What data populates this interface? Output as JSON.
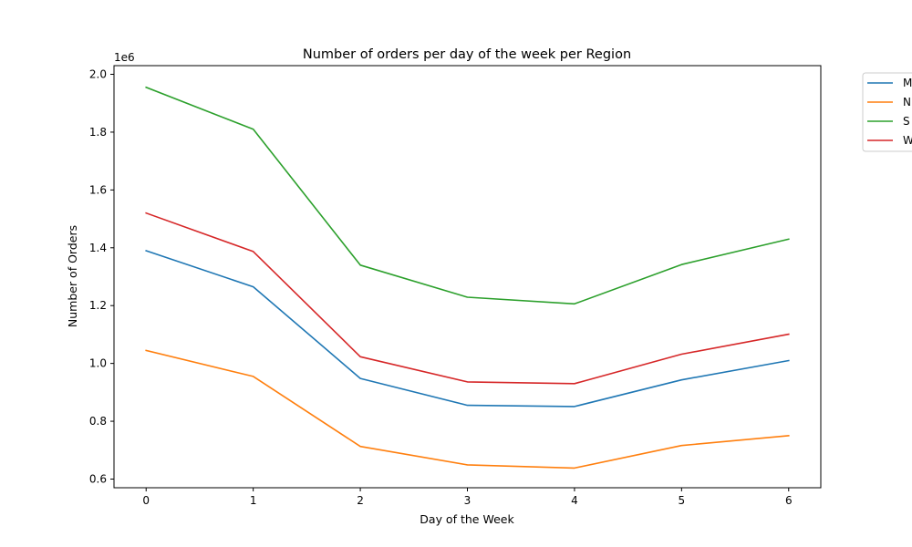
{
  "chart_data": {
    "type": "line",
    "title": "Number of orders per day of the week per Region",
    "xlabel": "Day of the Week",
    "ylabel": "Number of Orders",
    "y_scale_label": "1e6",
    "x": [
      0,
      1,
      2,
      3,
      4,
      5,
      6
    ],
    "xticks": [
      "0",
      "1",
      "2",
      "3",
      "4",
      "5",
      "6"
    ],
    "yticks": [
      {
        "value": 0.6,
        "label": "0.6"
      },
      {
        "value": 0.8,
        "label": "0.8"
      },
      {
        "value": 1.0,
        "label": "1.0"
      },
      {
        "value": 1.2,
        "label": "1.2"
      },
      {
        "value": 1.4,
        "label": "1.4"
      },
      {
        "value": 1.6,
        "label": "1.6"
      },
      {
        "value": 1.8,
        "label": "1.8"
      },
      {
        "value": 2.0,
        "label": "2.0"
      }
    ],
    "xlim": [
      -0.3,
      6.3
    ],
    "ylim": [
      0.57,
      2.03
    ],
    "grid": false,
    "legend_position": "upper right, outside plot",
    "series": [
      {
        "name": "M",
        "color": "#1f77b4",
        "values": [
          1.39,
          1.265,
          0.948,
          0.855,
          0.851,
          0.943,
          1.01
        ]
      },
      {
        "name": "N",
        "color": "#ff7f0e",
        "values": [
          1.045,
          0.955,
          0.713,
          0.649,
          0.638,
          0.716,
          0.75
        ]
      },
      {
        "name": "S",
        "color": "#2ca02c",
        "values": [
          1.955,
          1.81,
          1.34,
          1.229,
          1.206,
          1.342,
          1.43
        ]
      },
      {
        "name": "W",
        "color": "#d62728",
        "values": [
          1.52,
          1.387,
          1.023,
          0.936,
          0.93,
          1.032,
          1.101
        ]
      }
    ]
  }
}
